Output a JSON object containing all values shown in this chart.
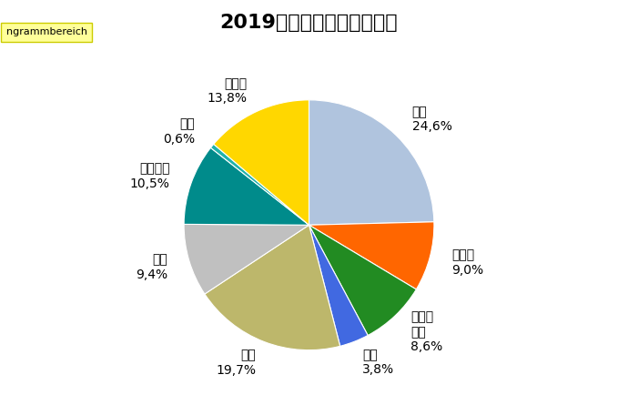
{
  "title": "2019年ドイツの発電源構成",
  "labels": [
    "風力",
    "太陽光",
    "バイオ\nマス",
    "水力",
    "褐炭",
    "石炭",
    "天然ガス",
    "石油",
    "原子力"
  ],
  "display_labels": [
    "風力\n24,6%",
    "太陽光\n9,0%",
    "バイオ\nマス\n8,6%",
    "水力\n3,8%",
    "褐炭\n19,7%",
    "石炭\n9,4%",
    "天然ガス\n10,5%",
    "石油\n0,6%",
    "原子力\n13,8%"
  ],
  "values": [
    24.6,
    9.0,
    8.6,
    3.8,
    19.7,
    9.4,
    10.5,
    0.6,
    13.8
  ],
  "colors": [
    "#B0C4DE",
    "#FF6600",
    "#228B22",
    "#4169E1",
    "#BDB76B",
    "#C0C0C0",
    "#008B8B",
    "#20B2AA",
    "#FFD700"
  ],
  "background_color": "#FFFFFF",
  "title_fontsize": 16,
  "label_fontsize": 10,
  "watermark_text": "ngrammbereich",
  "watermark_bg": "#FFFF99"
}
